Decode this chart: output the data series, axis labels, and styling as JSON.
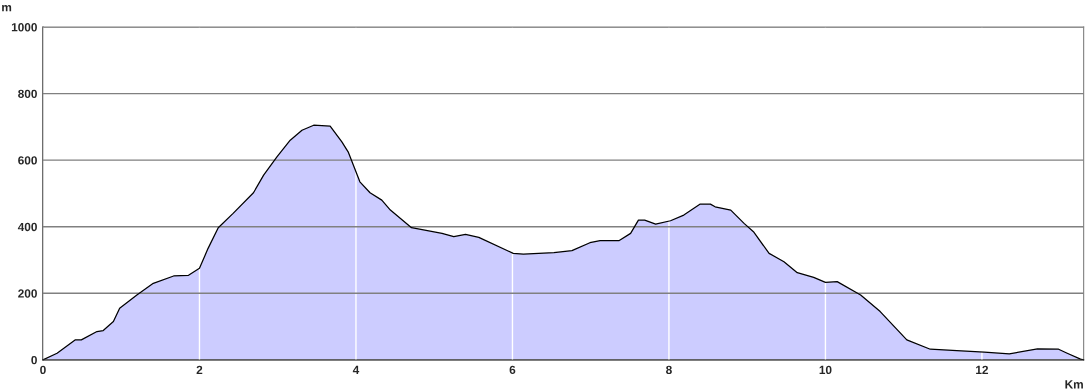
{
  "chart_data": {
    "type": "area",
    "xlabel": "Km",
    "ylabel": "m",
    "xlim": [
      0,
      13.3
    ],
    "ylim": [
      0,
      1000
    ],
    "xticks": [
      0,
      2,
      4,
      6,
      8,
      10,
      12
    ],
    "yticks": [
      0,
      200,
      400,
      600,
      800,
      1000
    ],
    "grid": true,
    "legend": false,
    "series": [
      {
        "color": "#ccccff",
        "x": [
          0,
          0.18,
          0.41,
          0.49,
          0.69,
          0.77,
          0.9,
          0.98,
          1.2,
          1.41,
          1.67,
          1.86,
          2.0,
          2.11,
          2.24,
          2.43,
          2.69,
          2.82,
          2.99,
          3.16,
          3.31,
          3.46,
          3.67,
          3.82,
          3.9,
          4.05,
          4.18,
          4.33,
          4.44,
          4.71,
          5.1,
          5.25,
          5.4,
          5.57,
          6.01,
          6.14,
          6.53,
          6.76,
          6.99,
          7.12,
          7.36,
          7.51,
          7.61,
          7.69,
          7.83,
          8.02,
          8.19,
          8.4,
          8.53,
          8.59,
          8.79,
          8.96,
          9.08,
          9.28,
          9.47,
          9.64,
          9.85,
          10.0,
          10.15,
          10.45,
          10.7,
          11.04,
          11.34,
          11.68,
          12.03,
          12.35,
          12.71,
          12.98,
          13.09,
          13.26,
          13.3
        ],
        "values": [
          0,
          20,
          60,
          60,
          85,
          88,
          115,
          155,
          195,
          230,
          252,
          254,
          275,
          335,
          397,
          440,
          502,
          555,
          610,
          660,
          690,
          705,
          702,
          655,
          625,
          535,
          502,
          480,
          450,
          397,
          380,
          370,
          377,
          368,
          320,
          318,
          322,
          328,
          352,
          358,
          358,
          380,
          420,
          420,
          408,
          418,
          435,
          468,
          468,
          460,
          450,
          410,
          385,
          320,
          295,
          262,
          248,
          233,
          235,
          195,
          145,
          60,
          32,
          28,
          23,
          18,
          33,
          32,
          20,
          2,
          0
        ]
      }
    ]
  }
}
